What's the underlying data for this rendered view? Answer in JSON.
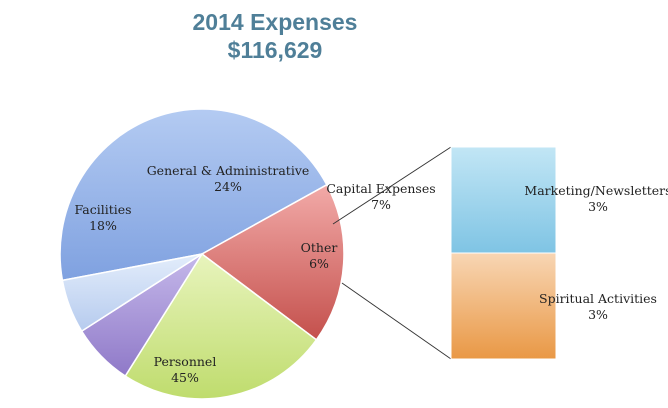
{
  "title": "2014 Expenses",
  "subtitle": "$116,629",
  "colors": {
    "personnel": "#95b3e8",
    "facilities": "#d9635f",
    "general_admin": "#cfe690",
    "capital": "#a894d8",
    "other": "#c6d8f3",
    "marketing": "#8ccde9",
    "spiritual": "#f2b06a",
    "title": "#4f7f98"
  },
  "chart_data": {
    "type": "pie",
    "title": "2014 Expenses",
    "subtitle": "$116,629",
    "slices": [
      {
        "label": "Personnel",
        "value": 45,
        "display": "45%"
      },
      {
        "label": "Facilities",
        "value": 18,
        "display": "18%"
      },
      {
        "label": "General & Administrative",
        "value": 24,
        "display": "24%"
      },
      {
        "label": "Capital Expenses",
        "value": 7,
        "display": "7%"
      },
      {
        "label": "Other",
        "value": 6,
        "display": "6%"
      }
    ],
    "breakout": {
      "of": "Other",
      "type": "stacked_bar",
      "segments": [
        {
          "label": "Marketing/Newsletters",
          "value": 3,
          "display": "3%"
        },
        {
          "label": "Spiritual Activities",
          "value": 3,
          "display": "3%"
        }
      ]
    }
  }
}
